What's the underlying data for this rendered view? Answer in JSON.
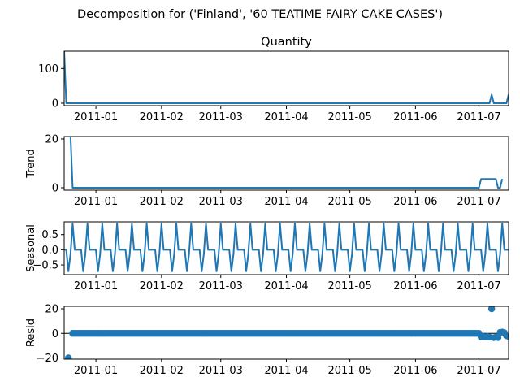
{
  "figure": {
    "suptitle": "Decomposition for ('Finland', '60 TEATIME FAIRY CAKE CASES')"
  },
  "colors": {
    "series": "#1f77b4"
  },
  "chart_data": [
    {
      "id": "quantity",
      "type": "line",
      "title": "Quantity",
      "ylabel": "",
      "x_start": "2010-12-17",
      "x_end": "2011-07-15",
      "x_ticks": [
        "2011-01",
        "2011-02",
        "2011-03",
        "2011-04",
        "2011-05",
        "2011-06",
        "2011-07"
      ],
      "y_ticks": [
        {
          "v": 0,
          "label": "0"
        },
        {
          "v": 100,
          "label": "100"
        }
      ],
      "ylim": [
        -7,
        150
      ],
      "series": [
        {
          "points": [
            [
              "2010-12-17",
              150
            ],
            [
              "2010-12-18",
              0
            ],
            [
              "2011-07-06",
              0
            ],
            [
              "2011-07-07",
              25
            ],
            [
              "2011-07-08",
              0
            ],
            [
              "2011-07-14",
              0
            ],
            [
              "2011-07-15",
              25
            ]
          ]
        }
      ]
    },
    {
      "id": "trend",
      "type": "line",
      "title": "",
      "ylabel": "Trend",
      "x_start": "2010-12-17",
      "x_end": "2011-07-15",
      "x_ticks": [
        "2011-01",
        "2011-02",
        "2011-03",
        "2011-04",
        "2011-05",
        "2011-06",
        "2011-07"
      ],
      "y_ticks": [
        {
          "v": 0,
          "label": "0"
        },
        {
          "v": 20,
          "label": "20"
        }
      ],
      "ylim": [
        -1,
        21
      ],
      "series": [
        {
          "points": [
            [
              "2010-12-20",
              21.4
            ],
            [
              "2010-12-21",
              0
            ],
            [
              "2011-07-01",
              0
            ],
            [
              "2011-07-02",
              3.6
            ],
            [
              "2011-07-09",
              3.6
            ],
            [
              "2011-07-10",
              0
            ],
            [
              "2011-07-11",
              0
            ],
            [
              "2011-07-12",
              3.6
            ]
          ]
        }
      ]
    },
    {
      "id": "seasonal",
      "type": "line",
      "title": "",
      "ylabel": "Seasonal",
      "x_start": "2010-12-17",
      "x_end": "2011-07-15",
      "x_ticks": [
        "2011-01",
        "2011-02",
        "2011-03",
        "2011-04",
        "2011-05",
        "2011-06",
        "2011-07"
      ],
      "y_ticks": [
        {
          "v": 0.5,
          "label": "0.5"
        },
        {
          "v": 0,
          "label": "0.0"
        },
        {
          "v": -0.5,
          "label": "−0.5"
        }
      ],
      "ylim": [
        -0.82,
        0.92
      ],
      "period_days": 7,
      "first_day": "2010-12-17",
      "pattern": [
        0,
        0,
        -0.71,
        -0.14,
        0.86,
        0,
        0
      ],
      "series": []
    },
    {
      "id": "resid",
      "type": "scatter",
      "title": "",
      "ylabel": "Resid",
      "x_start": "2010-12-17",
      "x_end": "2011-07-15",
      "x_ticks": [
        "2011-01",
        "2011-02",
        "2011-03",
        "2011-04",
        "2011-05",
        "2011-06",
        "2011-07"
      ],
      "y_ticks": [
        {
          "v": 20,
          "label": "20"
        },
        {
          "v": 0,
          "label": "0"
        },
        {
          "v": -20,
          "label": "−20"
        }
      ],
      "ylim": [
        -21,
        22
      ],
      "baseline": 0,
      "default_y": 0,
      "daily_from": "2010-12-21",
      "daily_to": "2011-07-15",
      "overrides": [
        {
          "date": "2010-12-19",
          "y": -20
        },
        {
          "date": "2011-07-02",
          "y": -3
        },
        {
          "date": "2011-07-03",
          "y": -2.5
        },
        {
          "date": "2011-07-04",
          "y": -3
        },
        {
          "date": "2011-07-05",
          "y": -2.5
        },
        {
          "date": "2011-07-06",
          "y": -3
        },
        {
          "date": "2011-07-07",
          "y": 20
        },
        {
          "date": "2011-07-08",
          "y": -3.5
        },
        {
          "date": "2011-07-09",
          "y": -3
        },
        {
          "date": "2011-07-10",
          "y": -3.5
        },
        {
          "date": "2011-07-11",
          "y": 0.8
        },
        {
          "date": "2011-07-12",
          "y": 1
        },
        {
          "date": "2011-07-13",
          "y": 0.5
        },
        {
          "date": "2011-07-14",
          "y": -2
        },
        {
          "date": "2011-07-15",
          "y": -2.5
        }
      ],
      "series": []
    }
  ]
}
